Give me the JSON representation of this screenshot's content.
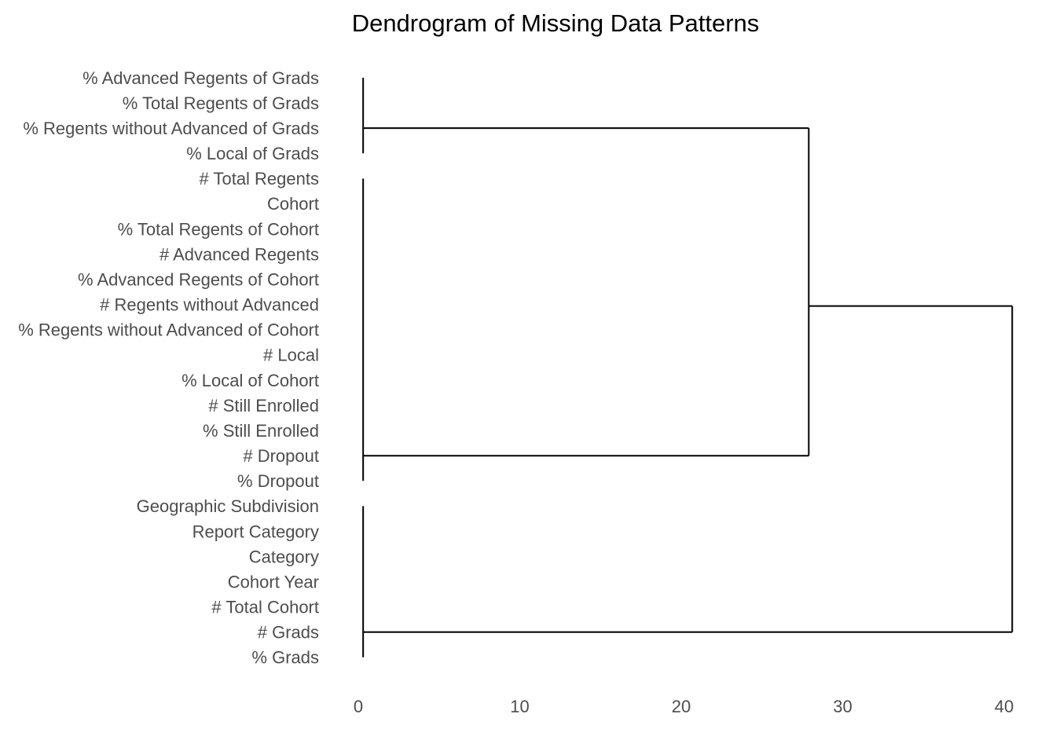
{
  "chart_data": {
    "type": "dendrogram",
    "title": "Dendrogram of Missing Data Patterns",
    "xlabel": "",
    "ylabel": "",
    "orientation": "horizontal",
    "xlim": [
      0,
      40
    ],
    "x_ticks": [
      0,
      10,
      20,
      30,
      40
    ],
    "grid": false,
    "leaves": [
      "% Advanced Regents of Grads",
      "% Total Regents of Grads",
      "% Regents without Advanced of Grads",
      "% Local of Grads",
      "# Total Regents",
      "Cohort",
      "% Total Regents of Cohort",
      "# Advanced Regents",
      "% Advanced Regents of Cohort",
      "# Regents without Advanced",
      "% Regents without Advanced of Cohort",
      "# Local",
      "% Local of Cohort",
      "# Still Enrolled",
      "% Still Enrolled",
      "# Dropout",
      "% Dropout",
      "Geographic Subdivision",
      "Report Category",
      "Category",
      "Cohort Year",
      "# Total Cohort",
      "# Grads",
      "% Grads"
    ],
    "clusters": [
      {
        "name": "A",
        "first_leaf": 0,
        "last_leaf": 3,
        "height": 0.3,
        "attach_leaf": 2
      },
      {
        "name": "B",
        "first_leaf": 4,
        "last_leaf": 16,
        "height": 0.3,
        "attach_leaf": 15
      },
      {
        "name": "C",
        "first_leaf": 17,
        "last_leaf": 23,
        "height": 0.3,
        "attach_leaf": 22
      }
    ],
    "merges": [
      {
        "left": "A",
        "right": "B",
        "height": 27.9,
        "attach_leaf": 8.5
      },
      {
        "left": "AB",
        "right": "C",
        "height": 40.5
      }
    ]
  }
}
